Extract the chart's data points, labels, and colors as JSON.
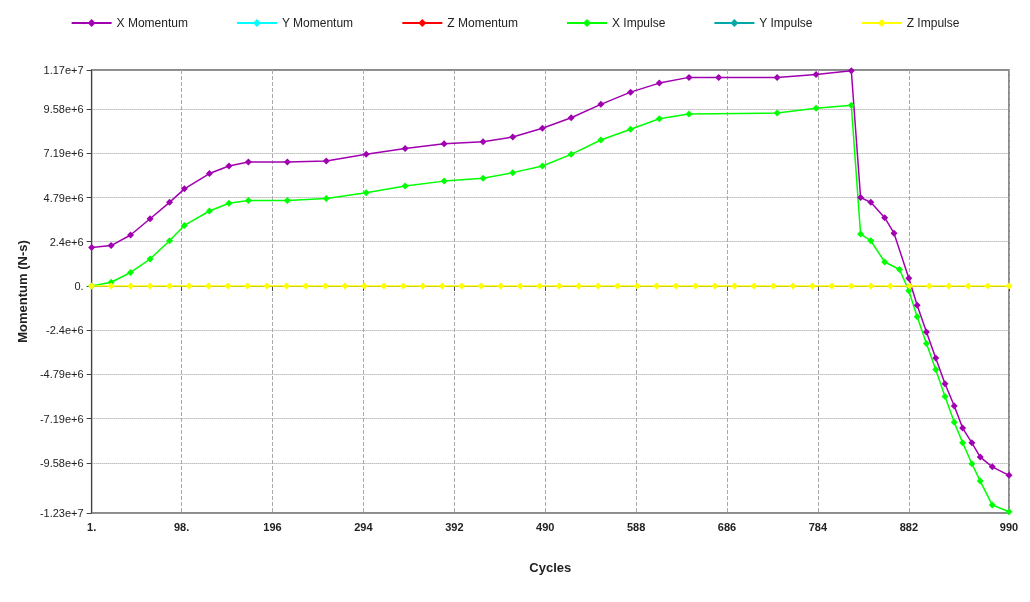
{
  "chart_data": {
    "type": "line",
    "xlabel": "Cycles",
    "ylabel": "Momentum (N-s)",
    "x": [
      1,
      22,
      43,
      64,
      85,
      101,
      128,
      149,
      170,
      212,
      254,
      297,
      339,
      381,
      423,
      455,
      487,
      518,
      550,
      582,
      613,
      645,
      677,
      740,
      782,
      820,
      830,
      841,
      856,
      866,
      882,
      891,
      901,
      911,
      921,
      931,
      940,
      950,
      959,
      972,
      990
    ],
    "series": [
      {
        "name": "X Momentum",
        "color": "#a000b0",
        "values": [
          2080000,
          2190000,
          2760000,
          3640000,
          4530000,
          5260000,
          6090000,
          6500000,
          6720000,
          6720000,
          6770000,
          7130000,
          7450000,
          7700000,
          7810000,
          8070000,
          8540000,
          9110000,
          9840000,
          10500000,
          10990000,
          11300000,
          11300000,
          11300000,
          11450000,
          11660000,
          4790000,
          4530000,
          3700000,
          2860000,
          420000,
          -1040000,
          -2500000,
          -3900000,
          -5300000,
          -6500000,
          -7700000,
          -8500000,
          -9270000,
          -9800000,
          -10260000
        ]
      },
      {
        "name": "Y Momentum",
        "color": "#00ffff",
        "values": [
          null,
          null,
          null,
          null,
          null,
          null,
          null,
          null,
          null,
          null,
          null,
          null,
          null,
          null,
          null,
          null,
          null,
          null,
          null,
          null,
          null,
          null,
          null,
          null,
          null,
          null,
          null,
          null,
          null,
          null,
          null,
          null,
          null,
          null,
          null,
          null,
          null,
          null,
          null,
          null,
          null
        ]
      },
      {
        "name": "Z Momentum",
        "color": "#ff0000",
        "values": [
          null,
          null,
          null,
          null,
          null,
          null,
          null,
          null,
          null,
          null,
          null,
          null,
          null,
          null,
          null,
          null,
          null,
          null,
          null,
          null,
          null,
          null,
          null,
          null,
          null,
          null,
          null,
          null,
          null,
          null,
          null,
          null,
          null,
          null,
          null,
          null,
          null,
          null,
          null,
          null,
          null
        ]
      },
      {
        "name": "X Impulse",
        "color": "#00ff00",
        "x": [
          1,
          22,
          43,
          64,
          85,
          101,
          128,
          149,
          170,
          212,
          254,
          297,
          339,
          381,
          423,
          455,
          487,
          518,
          550,
          582,
          613,
          645,
          740,
          782,
          820,
          830,
          841,
          856,
          872,
          882,
          891,
          901,
          911,
          921,
          931,
          940,
          950,
          959,
          972,
          990
        ],
        "values": [
          0,
          200000,
          730000,
          1460000,
          2450000,
          3280000,
          4060000,
          4480000,
          4630000,
          4630000,
          4740000,
          5050000,
          5410000,
          5680000,
          5830000,
          6140000,
          6500000,
          7130000,
          7910000,
          8490000,
          9060000,
          9320000,
          9370000,
          9630000,
          9790000,
          2810000,
          2450000,
          1300000,
          890000,
          -260000,
          -1670000,
          -3120000,
          -4530000,
          -5990000,
          -7390000,
          -8490000,
          -9630000,
          -10570000,
          -11870000,
          -12230000
        ]
      },
      {
        "name": "Y Impulse",
        "color": "#00a8a8",
        "values": [
          null,
          null,
          null,
          null,
          null,
          null,
          null,
          null,
          null,
          null,
          null,
          null,
          null,
          null,
          null,
          null,
          null,
          null,
          null,
          null,
          null,
          null,
          null,
          null,
          null,
          null,
          null,
          null,
          null,
          null,
          null,
          null,
          null,
          null,
          null,
          null,
          null,
          null,
          null,
          null,
          null
        ]
      },
      {
        "name": "Z Impulse",
        "color": "#ffff00",
        "x": [
          1,
          22,
          43,
          64,
          85,
          106,
          127,
          148,
          169,
          190,
          211,
          232,
          253,
          274,
          295,
          316,
          337,
          358,
          379,
          400,
          421,
          442,
          463,
          484,
          505,
          526,
          547,
          568,
          589,
          610,
          631,
          652,
          673,
          694,
          715,
          736,
          757,
          778,
          799,
          820,
          841,
          862,
          883,
          904,
          925,
          946,
          967,
          990
        ],
        "values": [
          0,
          0,
          0,
          0,
          0,
          0,
          0,
          0,
          0,
          0,
          0,
          0,
          0,
          0,
          0,
          0,
          0,
          0,
          0,
          0,
          0,
          0,
          0,
          0,
          0,
          0,
          0,
          0,
          0,
          0,
          0,
          0,
          0,
          0,
          0,
          0,
          0,
          0,
          0,
          0,
          0,
          0,
          0,
          0,
          0,
          0,
          0,
          0
        ]
      }
    ],
    "xlim": [
      1,
      990
    ],
    "xticks": [
      {
        "value": 1,
        "label": "1."
      },
      {
        "value": 98,
        "label": "98."
      },
      196,
      294,
      392,
      490,
      588,
      686,
      784,
      882,
      990
    ],
    "ylim": [
      -12300000,
      11700000
    ],
    "yticks": [
      {
        "value": -12300000,
        "label": "-1.23e+7"
      },
      {
        "value": -9580000,
        "label": "-9.58e+6"
      },
      {
        "value": -7190000,
        "label": "-7.19e+6"
      },
      {
        "value": -4790000,
        "label": "-4.79e+6"
      },
      {
        "value": -2400000,
        "label": "-2.4e+6"
      },
      {
        "value": 0,
        "label": "0."
      },
      {
        "value": 2400000,
        "label": "2.4e+6"
      },
      {
        "value": 4790000,
        "label": "4.79e+6"
      },
      {
        "value": 7190000,
        "label": "7.19e+6"
      },
      {
        "value": 9580000,
        "label": "9.58e+6"
      },
      {
        "value": 11700000,
        "label": "1.17e+7"
      }
    ],
    "grid": true,
    "legend": "top",
    "marker": "diamond",
    "line_style": "solid"
  }
}
